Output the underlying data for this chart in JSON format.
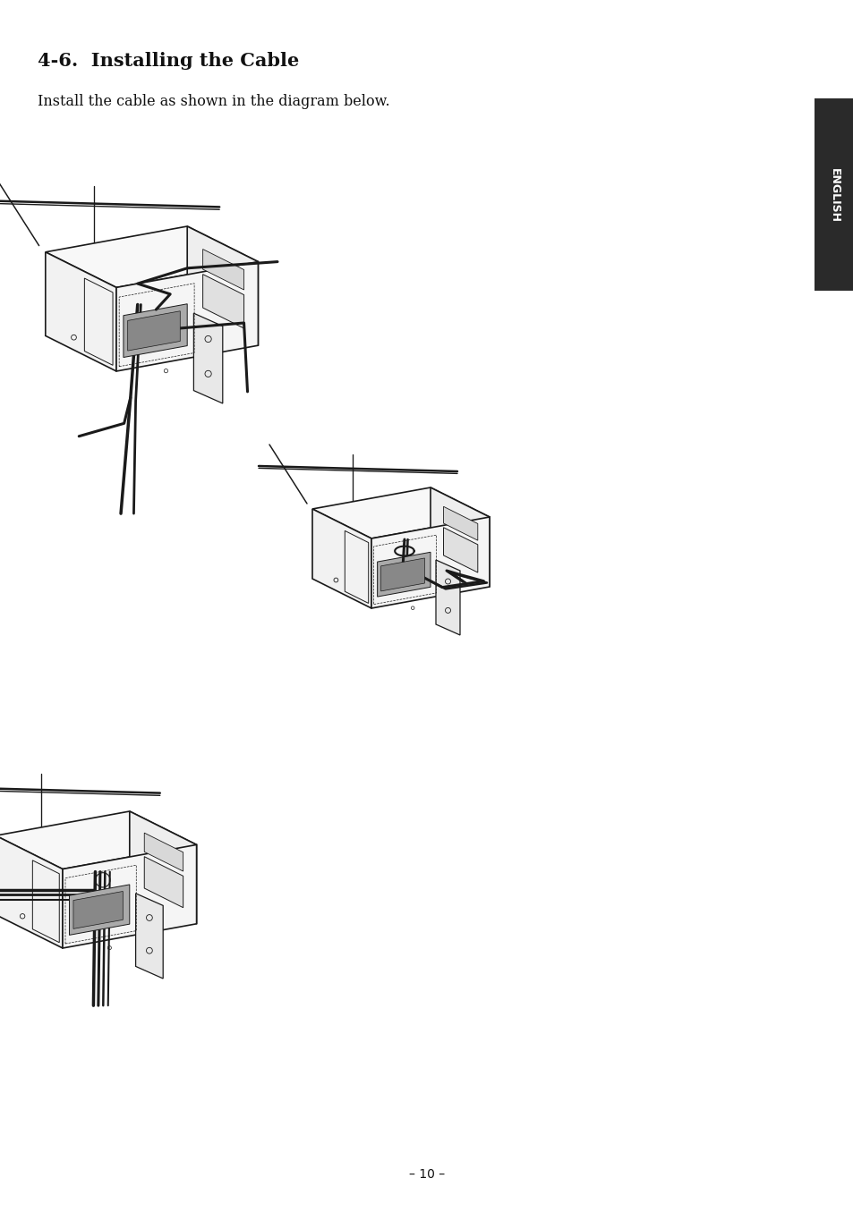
{
  "title": "4-6.  Installing the Cable",
  "subtitle": "Install the cable as shown in the diagram below.",
  "page_number": "– 10 –",
  "english_tab_text": "ENGLISH",
  "english_tab_color": "#2a2a2a",
  "english_tab_text_color": "#ffffff",
  "background_color": "#ffffff",
  "text_color": "#111111",
  "title_fontsize": 15,
  "subtitle_fontsize": 11.5,
  "page_num_fontsize": 10
}
